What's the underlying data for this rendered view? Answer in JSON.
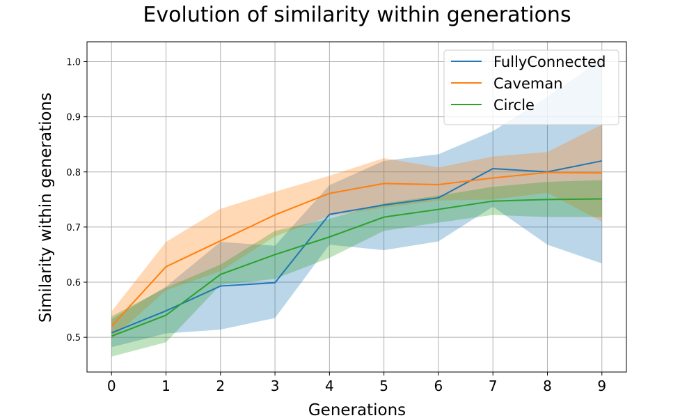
{
  "chart_data": {
    "type": "line",
    "title": "Evolution of similarity within generations",
    "xlabel": "Generations",
    "ylabel": "Similarity within generations",
    "x": [
      0,
      1,
      2,
      3,
      4,
      5,
      6,
      7,
      8,
      9
    ],
    "xlim": [
      -0.45,
      9.45
    ],
    "ylim": [
      0.437,
      1.036
    ],
    "yticks": [
      0.5,
      0.6,
      0.7,
      0.8,
      0.9,
      1.0
    ],
    "ytick_labels": [
      "0.5",
      "0.6",
      "0.7",
      "0.8",
      "0.9",
      "1.0"
    ],
    "xtick_labels": [
      "0",
      "1",
      "2",
      "3",
      "4",
      "5",
      "6",
      "7",
      "8",
      "9"
    ],
    "grid": true,
    "legend_position": "top-right",
    "series": [
      {
        "name": "FullyConnected",
        "color": "#1f77b4",
        "values": [
          0.508,
          0.548,
          0.593,
          0.599,
          0.723,
          0.74,
          0.753,
          0.806,
          0.8,
          0.82
        ],
        "lower": [
          0.482,
          0.507,
          0.514,
          0.535,
          0.668,
          0.658,
          0.674,
          0.737,
          0.668,
          0.634
        ],
        "upper": [
          0.533,
          0.592,
          0.673,
          0.666,
          0.776,
          0.82,
          0.832,
          0.874,
          0.936,
          1.005
        ]
      },
      {
        "name": "Caveman",
        "color": "#ff7f0e",
        "values": [
          0.52,
          0.628,
          0.675,
          0.722,
          0.761,
          0.779,
          0.777,
          0.789,
          0.799,
          0.798
        ],
        "lower": [
          0.497,
          0.585,
          0.62,
          0.683,
          0.72,
          0.735,
          0.748,
          0.75,
          0.762,
          0.71
        ],
        "upper": [
          0.547,
          0.673,
          0.733,
          0.764,
          0.793,
          0.825,
          0.808,
          0.828,
          0.836,
          0.886
        ]
      },
      {
        "name": "Circle",
        "color": "#2ca02c",
        "values": [
          0.502,
          0.54,
          0.614,
          0.65,
          0.682,
          0.718,
          0.732,
          0.747,
          0.75,
          0.751
        ],
        "lower": [
          0.465,
          0.491,
          0.595,
          0.606,
          0.644,
          0.693,
          0.708,
          0.722,
          0.718,
          0.718
        ],
        "upper": [
          0.538,
          0.59,
          0.632,
          0.693,
          0.715,
          0.743,
          0.757,
          0.773,
          0.782,
          0.785
        ]
      }
    ]
  }
}
